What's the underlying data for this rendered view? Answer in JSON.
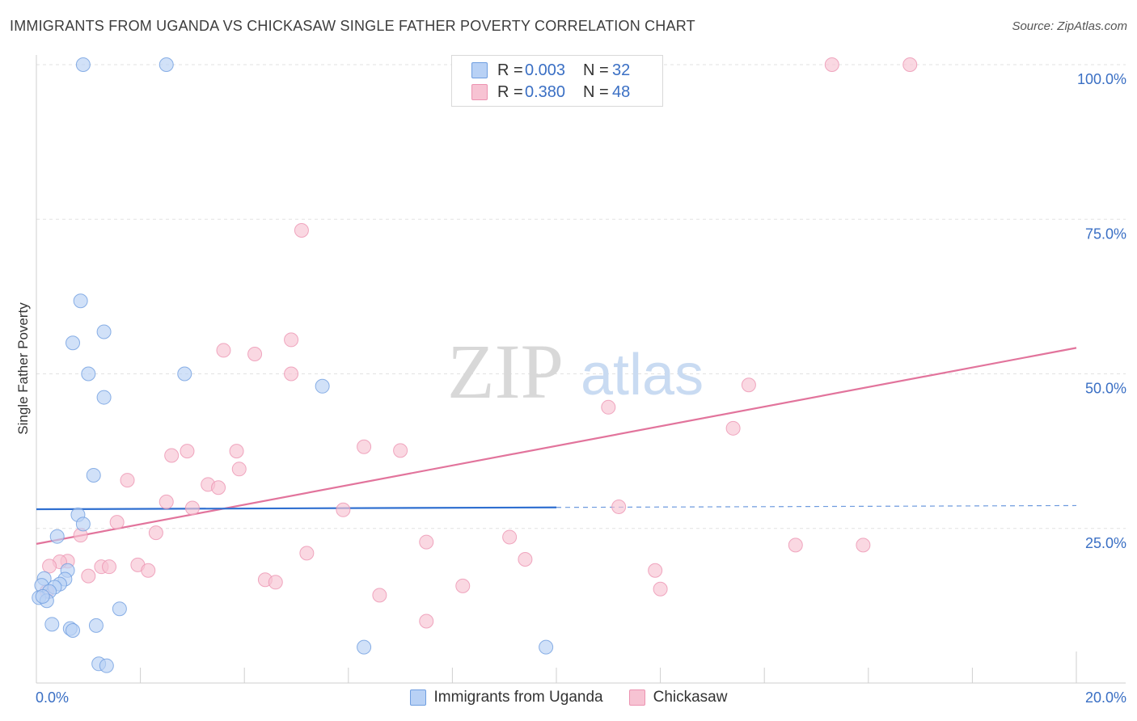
{
  "title": "IMMIGRANTS FROM UGANDA VS CHICKASAW SINGLE FATHER POVERTY CORRELATION CHART",
  "source": "Source: ZipAtlas.com",
  "watermark": {
    "zip": "ZIP",
    "atlas": "atlas"
  },
  "legend": {
    "rows": [
      {
        "r_label": "R =",
        "r_value": "0.003",
        "n_label": "N =",
        "n_value": "32"
      },
      {
        "r_label": "R =",
        "r_value": "0.380",
        "n_label": "N =",
        "n_value": "48"
      }
    ]
  },
  "colors": {
    "uganda_fill": "#b8d1f5",
    "uganda_stroke": "#6f9ee0",
    "uganda_line": "#2f6fd0",
    "chickasaw_fill": "#f7c3d3",
    "chickasaw_stroke": "#ec93b1",
    "chickasaw_line": "#e2749c",
    "axis_label": "#3a6fc4"
  },
  "chart_data": {
    "type": "scatter",
    "title": "IMMIGRANTS FROM UGANDA VS CHICKASAW SINGLE FATHER POVERTY CORRELATION CHART",
    "xlabel": "",
    "ylabel": "Single Father Poverty",
    "xlim": [
      0,
      20
    ],
    "ylim": [
      0,
      100
    ],
    "x_tick_labels": [
      "0.0%",
      "20.0%"
    ],
    "y_ticks": [
      25,
      50,
      75,
      100
    ],
    "y_tick_labels": [
      "25.0%",
      "50.0%",
      "75.0%",
      "100.0%"
    ],
    "grid": true,
    "legend_position": "top-center",
    "series": [
      {
        "name": "Immigrants from Uganda",
        "r": 0.003,
        "n": 32,
        "trend": {
          "x": [
            0,
            10
          ],
          "y": [
            28.1,
            28.4
          ],
          "dashed_to": [
            20,
            28.7
          ]
        },
        "points": [
          {
            "x": 0.9,
            "y": 100
          },
          {
            "x": 2.5,
            "y": 100
          },
          {
            "x": 0.85,
            "y": 61.8
          },
          {
            "x": 1.3,
            "y": 56.8
          },
          {
            "x": 0.7,
            "y": 55.0
          },
          {
            "x": 1.0,
            "y": 50.0
          },
          {
            "x": 2.85,
            "y": 50.0
          },
          {
            "x": 1.3,
            "y": 46.2
          },
          {
            "x": 5.5,
            "y": 48.0
          },
          {
            "x": 1.1,
            "y": 33.6
          },
          {
            "x": 0.8,
            "y": 27.2
          },
          {
            "x": 0.9,
            "y": 25.7
          },
          {
            "x": 0.4,
            "y": 23.7
          },
          {
            "x": 0.6,
            "y": 18.2
          },
          {
            "x": 0.15,
            "y": 16.9
          },
          {
            "x": 0.55,
            "y": 16.8
          },
          {
            "x": 0.45,
            "y": 16.0
          },
          {
            "x": 0.1,
            "y": 15.8
          },
          {
            "x": 0.35,
            "y": 15.5
          },
          {
            "x": 0.25,
            "y": 14.8
          },
          {
            "x": 0.05,
            "y": 13.8
          },
          {
            "x": 0.2,
            "y": 13.3
          },
          {
            "x": 1.6,
            "y": 12.0
          },
          {
            "x": 0.3,
            "y": 9.5
          },
          {
            "x": 0.65,
            "y": 8.8
          },
          {
            "x": 0.7,
            "y": 8.5
          },
          {
            "x": 1.15,
            "y": 9.3
          },
          {
            "x": 6.3,
            "y": 5.8
          },
          {
            "x": 9.8,
            "y": 5.8
          },
          {
            "x": 1.2,
            "y": 3.1
          },
          {
            "x": 1.35,
            "y": 2.8
          },
          {
            "x": 0.12,
            "y": 14.0
          }
        ]
      },
      {
        "name": "Chickasaw",
        "r": 0.38,
        "n": 48,
        "trend": {
          "x": [
            0,
            20
          ],
          "y": [
            22.5,
            54.2
          ]
        },
        "points": [
          {
            "x": 15.3,
            "y": 100
          },
          {
            "x": 16.8,
            "y": 100
          },
          {
            "x": 5.1,
            "y": 73.2
          },
          {
            "x": 4.9,
            "y": 55.5
          },
          {
            "x": 3.6,
            "y": 53.8
          },
          {
            "x": 4.2,
            "y": 53.2
          },
          {
            "x": 4.9,
            "y": 50.0
          },
          {
            "x": 13.7,
            "y": 48.2
          },
          {
            "x": 11.0,
            "y": 44.6
          },
          {
            "x": 13.4,
            "y": 41.2
          },
          {
            "x": 6.3,
            "y": 38.2
          },
          {
            "x": 7.0,
            "y": 37.6
          },
          {
            "x": 2.9,
            "y": 37.5
          },
          {
            "x": 3.85,
            "y": 37.5
          },
          {
            "x": 2.6,
            "y": 36.8
          },
          {
            "x": 3.9,
            "y": 34.6
          },
          {
            "x": 1.75,
            "y": 32.8
          },
          {
            "x": 3.3,
            "y": 32.1
          },
          {
            "x": 3.5,
            "y": 31.6
          },
          {
            "x": 2.5,
            "y": 29.3
          },
          {
            "x": 3.0,
            "y": 28.3
          },
          {
            "x": 5.9,
            "y": 28.0
          },
          {
            "x": 11.2,
            "y": 28.5
          },
          {
            "x": 1.55,
            "y": 26.0
          },
          {
            "x": 2.3,
            "y": 24.3
          },
          {
            "x": 0.85,
            "y": 23.9
          },
          {
            "x": 9.1,
            "y": 23.6
          },
          {
            "x": 7.5,
            "y": 22.8
          },
          {
            "x": 14.6,
            "y": 22.3
          },
          {
            "x": 15.9,
            "y": 22.3
          },
          {
            "x": 5.2,
            "y": 21.0
          },
          {
            "x": 9.4,
            "y": 20.0
          },
          {
            "x": 0.6,
            "y": 19.7
          },
          {
            "x": 0.45,
            "y": 19.6
          },
          {
            "x": 0.25,
            "y": 18.9
          },
          {
            "x": 1.25,
            "y": 18.8
          },
          {
            "x": 1.4,
            "y": 18.8
          },
          {
            "x": 1.95,
            "y": 19.1
          },
          {
            "x": 2.15,
            "y": 18.2
          },
          {
            "x": 11.9,
            "y": 18.2
          },
          {
            "x": 1.0,
            "y": 17.3
          },
          {
            "x": 4.4,
            "y": 16.7
          },
          {
            "x": 4.6,
            "y": 16.3
          },
          {
            "x": 8.2,
            "y": 15.7
          },
          {
            "x": 12.0,
            "y": 15.2
          },
          {
            "x": 0.2,
            "y": 14.8
          },
          {
            "x": 6.6,
            "y": 14.2
          },
          {
            "x": 7.5,
            "y": 10.0
          }
        ]
      }
    ]
  }
}
